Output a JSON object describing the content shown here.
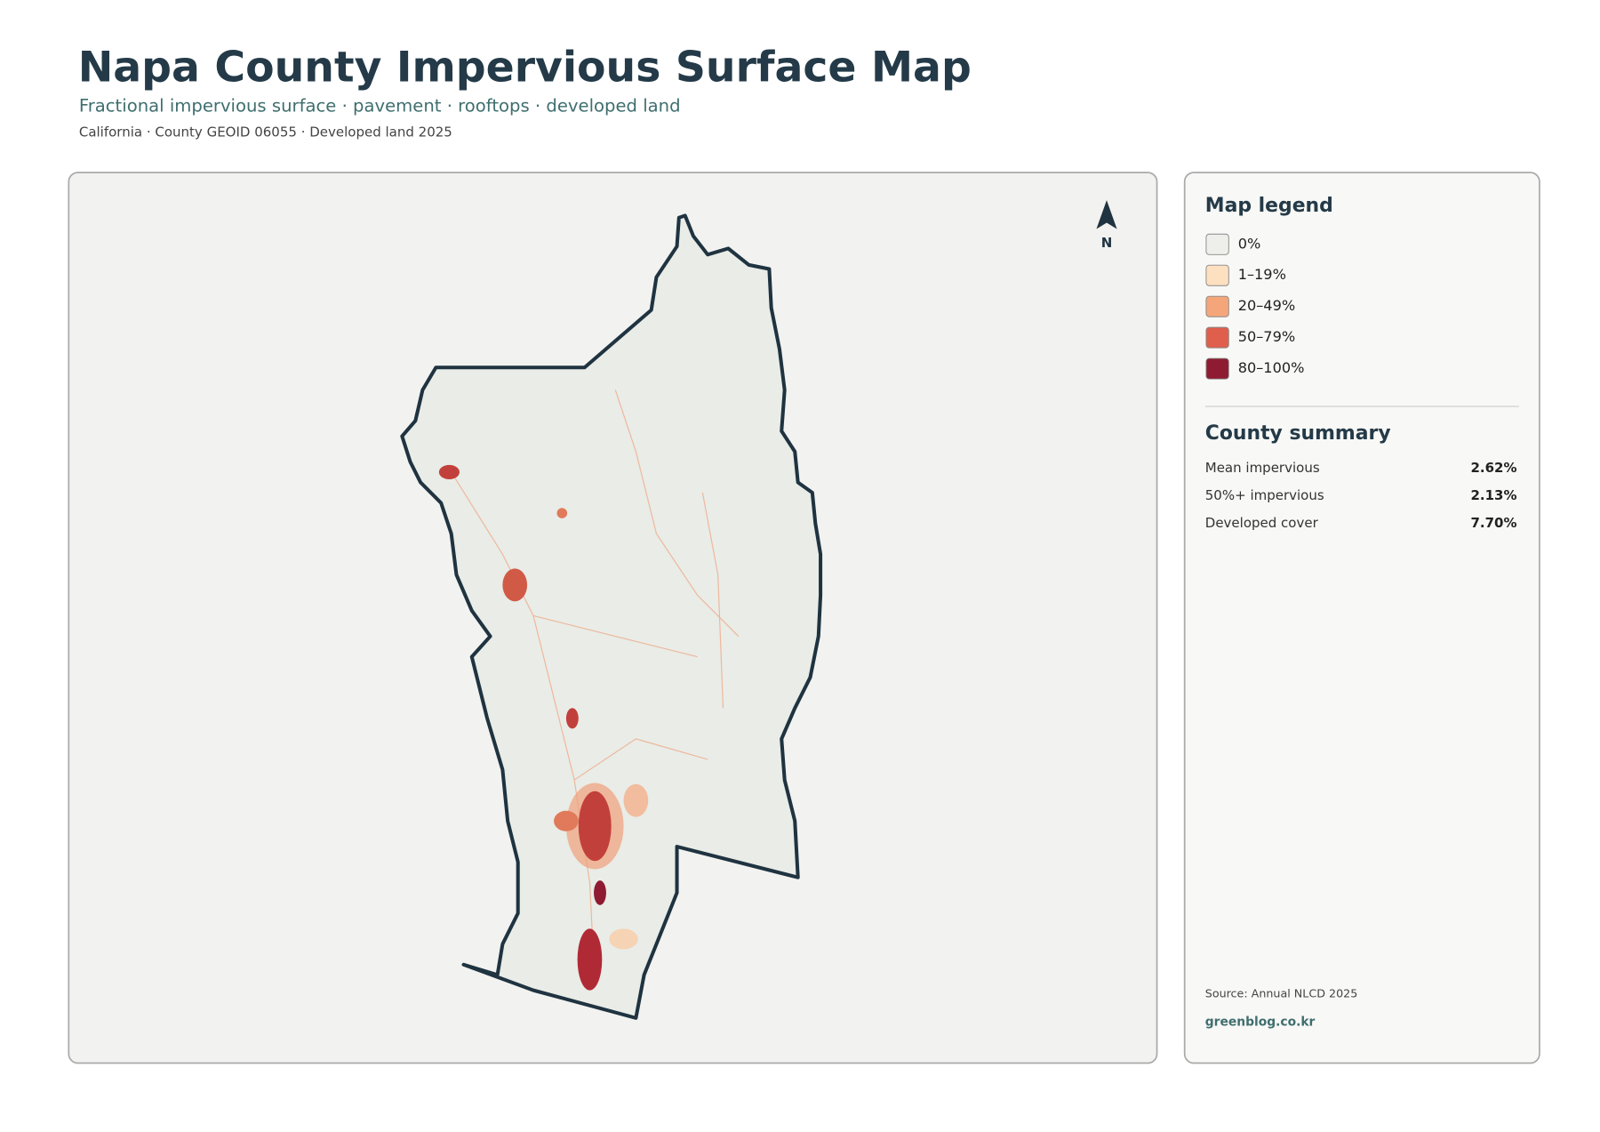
{
  "header": {
    "title": "Napa County Impervious Surface Map",
    "subtitle": "Fractional impervious surface · pavement · rooftops · developed land",
    "meta": "California · County GEOID 06055 · Developed land 2025"
  },
  "map": {
    "north": "N"
  },
  "legend": {
    "title": "Map legend",
    "items": [
      {
        "label": "0%",
        "color": "#eeeeea"
      },
      {
        "label": "1–19%",
        "color": "#fde0c0"
      },
      {
        "label": "20–49%",
        "color": "#f4a67a"
      },
      {
        "label": "50–79%",
        "color": "#df5f4c"
      },
      {
        "label": "80–100%",
        "color": "#8e1b32"
      }
    ]
  },
  "summary": {
    "title": "County summary",
    "rows": [
      {
        "label": "Mean impervious",
        "value": "2.62%"
      },
      {
        "label": "50%+ impervious",
        "value": "2.13%"
      },
      {
        "label": "Developed cover",
        "value": "7.70%"
      }
    ]
  },
  "footer": {
    "source": "Source: Annual NLCD 2025",
    "site": "greenblog.co.kr"
  }
}
